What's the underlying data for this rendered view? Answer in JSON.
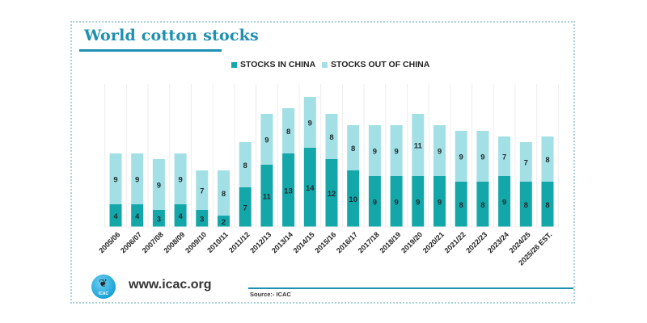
{
  "header": {
    "title": "World cotton stocks"
  },
  "colors": {
    "in_china": "#14a7a9",
    "out_of_china": "#a3e0e6",
    "accent": "#1f8fb2",
    "gridline": "#eeeeee",
    "label_text": "#1e2a2e"
  },
  "footer": {
    "url": "www.icac.org",
    "logo_text": "ICAC",
    "source": "Source:- ICAC"
  },
  "chart_data": {
    "type": "bar",
    "stacked": true,
    "title": "World cotton stocks",
    "xlabel": "",
    "ylabel": "",
    "ylim": [
      0,
      24
    ],
    "grid": "vertical",
    "legend_position": "top-center",
    "categories": [
      "2005/06",
      "2006/07",
      "2007/08",
      "2008/09",
      "2009/10",
      "2010/11",
      "2011/12",
      "2012/13",
      "2013/14",
      "2014/15",
      "2015/16",
      "2016/17",
      "2017/18",
      "2018/19",
      "2019/20",
      "2020/21",
      "2021/22",
      "2022/23",
      "2023/24",
      "2024/25",
      "2025/26 EST."
    ],
    "series": [
      {
        "name": "STOCKS IN CHINA",
        "color_key": "in_china",
        "values": [
          4,
          4,
          3,
          4,
          3,
          2,
          7,
          11,
          13,
          14,
          12,
          10,
          9,
          9,
          9,
          9,
          8,
          8,
          9,
          8,
          8
        ]
      },
      {
        "name": "STOCKS OUT OF CHINA",
        "color_key": "out_of_china",
        "values": [
          9,
          9,
          9,
          9,
          7,
          8,
          8,
          9,
          8,
          9,
          8,
          8,
          9,
          9,
          11,
          9,
          9,
          9,
          7,
          7,
          8
        ]
      }
    ]
  }
}
